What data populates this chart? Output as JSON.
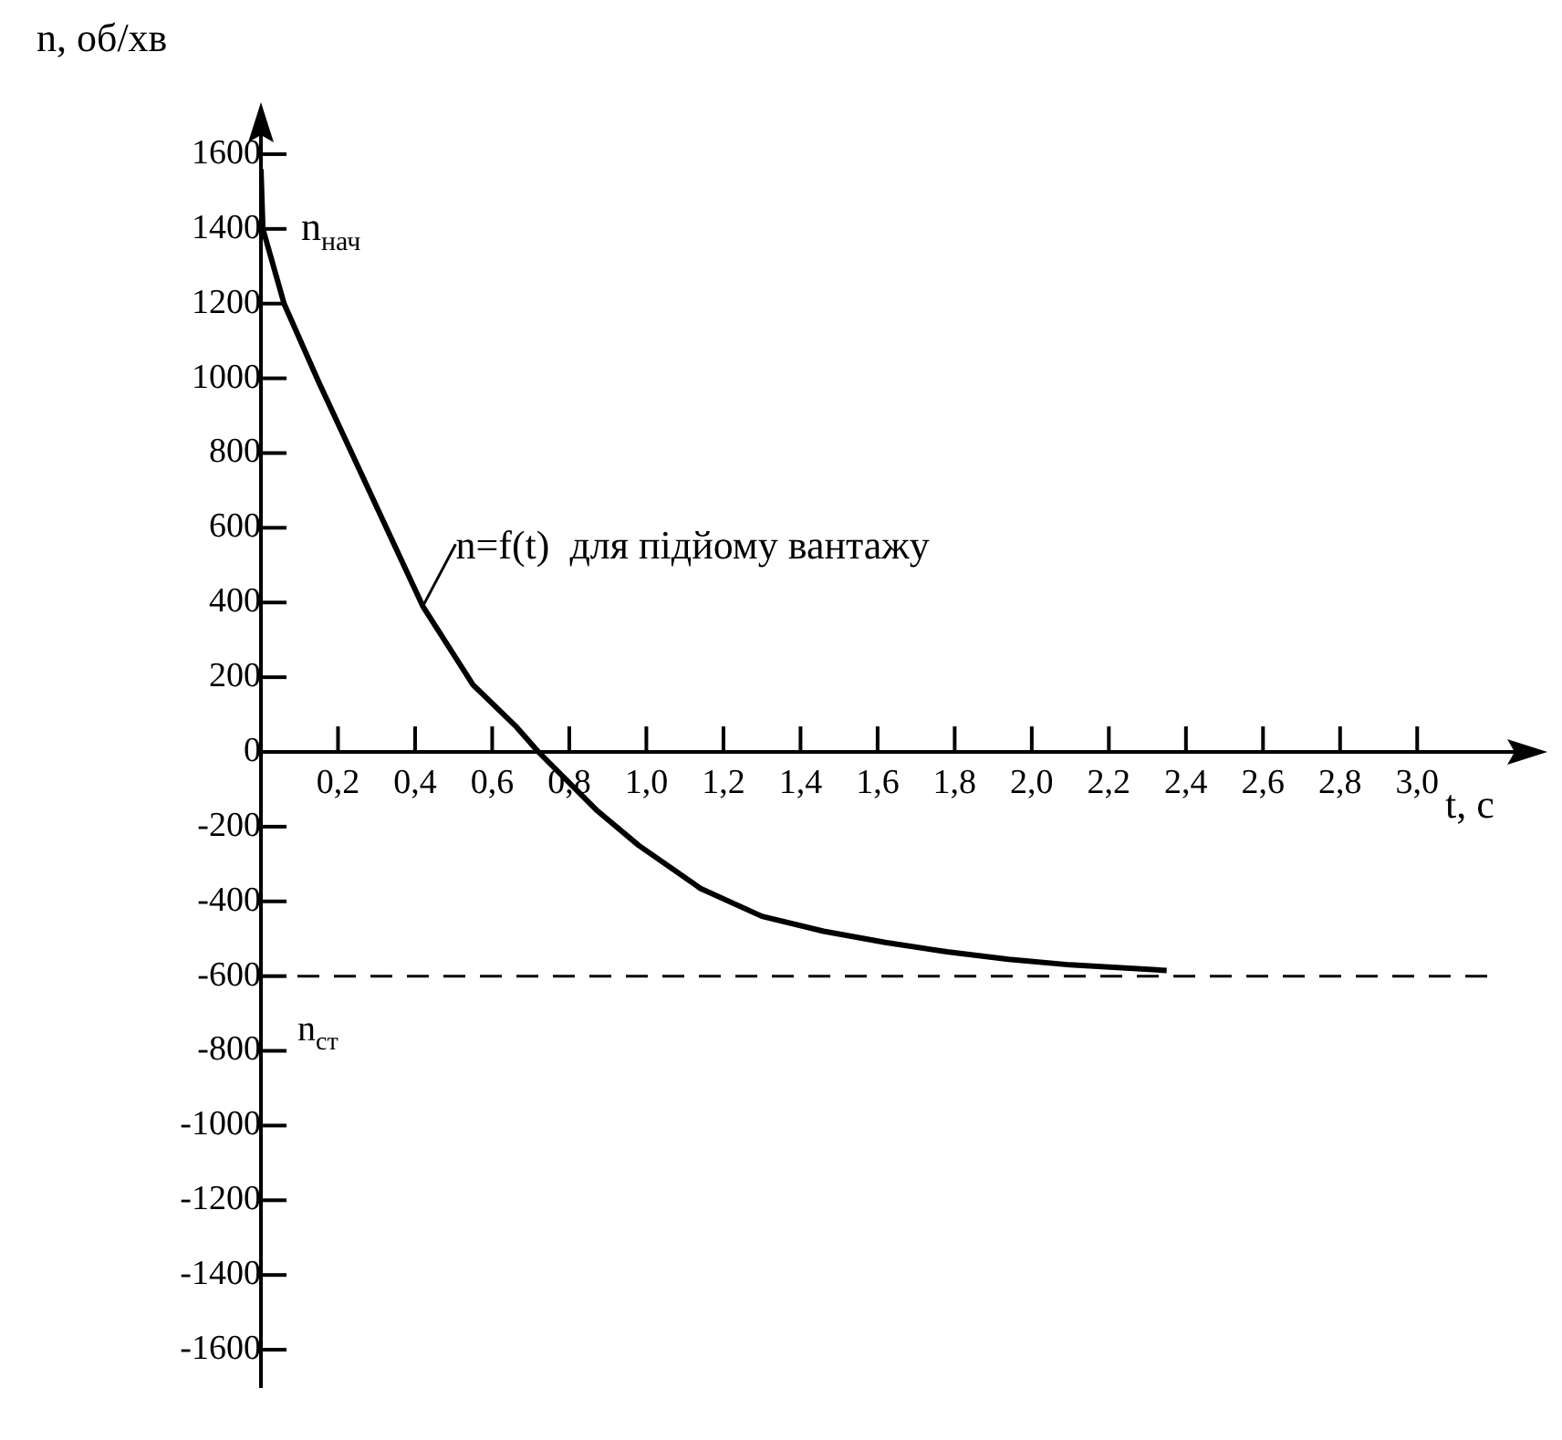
{
  "chart_data": {
    "type": "line",
    "xlabel": "t, с",
    "ylabel": "n, об/хв",
    "xlim": [
      0,
      3.3
    ],
    "ylim": [
      -1700,
      1700
    ],
    "xticks": [
      {
        "value": 0.2,
        "label": "0,2"
      },
      {
        "value": 0.4,
        "label": "0,4"
      },
      {
        "value": 0.6,
        "label": "0,6"
      },
      {
        "value": 0.8,
        "label": "0,8"
      },
      {
        "value": 1.0,
        "label": "1,0"
      },
      {
        "value": 1.2,
        "label": "1,2"
      },
      {
        "value": 1.4,
        "label": "1,4"
      },
      {
        "value": 1.6,
        "label": "1,6"
      },
      {
        "value": 1.8,
        "label": "1,8"
      },
      {
        "value": 2.0,
        "label": "2,0"
      },
      {
        "value": 2.2,
        "label": "2,2"
      },
      {
        "value": 2.4,
        "label": "2,4"
      },
      {
        "value": 2.6,
        "label": "2,6"
      },
      {
        "value": 2.8,
        "label": "2,8"
      },
      {
        "value": 3.0,
        "label": "3,0"
      }
    ],
    "yticks": [
      -1600,
      -1400,
      -1200,
      -1000,
      -800,
      -600,
      -400,
      -200,
      0,
      200,
      400,
      600,
      800,
      1000,
      1200,
      1400,
      1600
    ],
    "series": [
      {
        "color": "#000000",
        "x": [
          0,
          0.005,
          0.06,
          0.15,
          0.24,
          0.33,
          0.42,
          0.55,
          0.66,
          0.72,
          0.87,
          0.98,
          1.14,
          1.3,
          1.46,
          1.62,
          1.78,
          1.94,
          2.1,
          2.35
        ],
        "values": [
          1560,
          1400,
          1200,
          990,
          790,
          590,
          390,
          180,
          70,
          0,
          -155,
          -250,
          -365,
          -440,
          -480,
          -510,
          -535,
          -555,
          -570,
          -585
        ]
      }
    ],
    "ref_lines": [
      {
        "axis": "y",
        "value": -600,
        "label": "n$_{ст}$",
        "color": "#000000",
        "line_style": "dashed"
      }
    ],
    "annotations": [
      {
        "text": "n$_{нач}$",
        "x": 0,
        "y": 1400
      },
      {
        "text": "n=f(t)  для підйому вантажу",
        "x": 0.42,
        "y": 390
      }
    ],
    "grid": false,
    "legend": false,
    "marker": "none",
    "line_style": "solid"
  }
}
